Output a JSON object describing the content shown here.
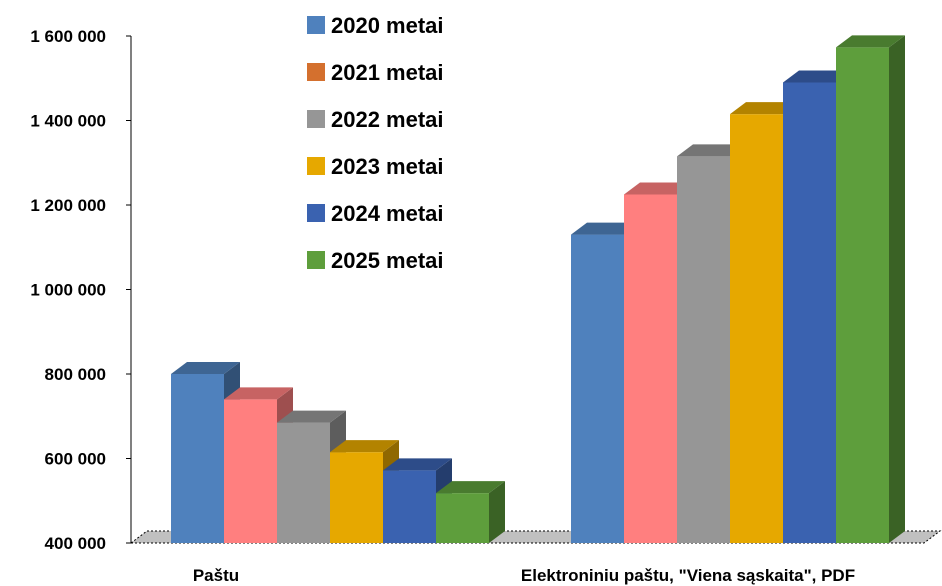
{
  "chart_data": {
    "type": "bar",
    "title": "",
    "xlabel": "",
    "ylabel": "",
    "categories": [
      "Paštu",
      "Elektroniniu paštu, \"Viena   sąskaita\", PDF"
    ],
    "ylim": [
      400000,
      1600000
    ],
    "yticks": [
      400000,
      600000,
      800000,
      1000000,
      1200000,
      1400000,
      1600000
    ],
    "ytick_labels": [
      "400 000",
      "600 000",
      "800 000",
      "1 000 000",
      "1 200 000",
      "1 400 000",
      "1 600 000"
    ],
    "grid": false,
    "legend_position": "top-center",
    "series": [
      {
        "name": "2020 metai",
        "color": "#4F81BD",
        "values": [
          800000,
          1130000
        ]
      },
      {
        "name": "2021 metai",
        "color": "#D4702E",
        "bar_color": "#FF7F7F",
        "values": [
          740000,
          1225000
        ]
      },
      {
        "name": "2022 metai",
        "color": "#969696",
        "values": [
          685000,
          1315000
        ]
      },
      {
        "name": "2023 metai",
        "color": "#E6A800",
        "values": [
          615000,
          1415000
        ]
      },
      {
        "name": "2024 metai",
        "color": "#3A62B0",
        "values": [
          572000,
          1490000
        ]
      },
      {
        "name": "2025 metai",
        "color": "#5E9E3C",
        "values": [
          518000,
          1573000
        ]
      }
    ]
  }
}
